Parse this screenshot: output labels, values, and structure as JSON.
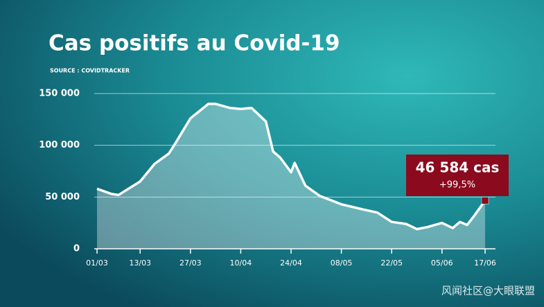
{
  "chart_data": {
    "type": "area",
    "title": "Cas positifs au Covid-19",
    "subtitle": "SOURCE : COVIDTRACKER",
    "x": [
      "01/03",
      "05/03",
      "07/03",
      "13/03",
      "17/03",
      "21/03",
      "23/03",
      "27/03",
      "01/04",
      "03/04",
      "07/04",
      "10/04",
      "13/04",
      "17/04",
      "19/04",
      "21/04",
      "24/04",
      "25/04",
      "28/04",
      "02/05",
      "08/05",
      "14/05",
      "18/05",
      "22/05",
      "26/05",
      "29/05",
      "01/06",
      "05/06",
      "08/06",
      "10/06",
      "12/06",
      "14/06",
      "17/06"
    ],
    "values": [
      58000,
      53000,
      52000,
      65000,
      82000,
      92000,
      103000,
      126000,
      140000,
      140000,
      136000,
      135000,
      136000,
      123000,
      94000,
      88000,
      74000,
      83000,
      61000,
      51000,
      43000,
      38000,
      35000,
      26000,
      24000,
      19000,
      21000,
      25000,
      20000,
      26000,
      23000,
      32000,
      46584
    ],
    "xlim": [
      "01/03",
      "17/06"
    ],
    "xticks": [
      "01/03",
      "13/03",
      "27/03",
      "10/04",
      "24/04",
      "08/05",
      "22/05",
      "05/06",
      "17/06"
    ],
    "ylim": [
      0,
      160000
    ],
    "yticks": [
      0,
      {
        "value": 50000,
        "label": "50 000"
      },
      {
        "value": 100000,
        "label": "100 000"
      },
      {
        "value": 150000,
        "label": "150 000"
      }
    ],
    "grid": true,
    "color": "#ffffff",
    "annotation": {
      "label": "46 584 cas",
      "change": "+99,5%",
      "color": "#8b0a1e"
    },
    "watermark": "风闻社区@大眼联盟"
  }
}
